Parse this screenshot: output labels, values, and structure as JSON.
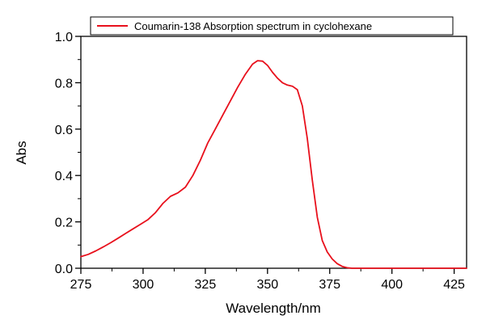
{
  "chart_data": {
    "type": "line",
    "legend": {
      "position": "top",
      "boxed": true
    },
    "xlabel": "Wavelength/nm",
    "ylabel": "Abs",
    "xlim": [
      275,
      430
    ],
    "ylim": [
      0.0,
      1.0
    ],
    "xticks": [
      275,
      300,
      325,
      350,
      375,
      400,
      425
    ],
    "xtick_labels": [
      "275",
      "300",
      "325",
      "350",
      "375",
      "400",
      "425"
    ],
    "yticks": [
      0.0,
      0.2,
      0.4,
      0.6,
      0.8,
      1.0
    ],
    "ytick_labels": [
      "0.0",
      "0.2",
      "0.4",
      "0.6",
      "0.8",
      "1.0"
    ],
    "grid": false,
    "series": [
      {
        "name": "Coumarin-138 Absorption spectrum in cyclohexane",
        "color": "#e8101c",
        "x": [
          275,
          278,
          281,
          284,
          287,
          290,
          293,
          296,
          299,
          302,
          305,
          308,
          311,
          314,
          317,
          320,
          323,
          326,
          329,
          332,
          335,
          338,
          341,
          344,
          346,
          348,
          350,
          352,
          354,
          356,
          358,
          360,
          362,
          364,
          366,
          368,
          370,
          372,
          374,
          376,
          378,
          380,
          382,
          384,
          386,
          390,
          400,
          410,
          420,
          430
        ],
        "y": [
          0.05,
          0.06,
          0.075,
          0.092,
          0.11,
          0.13,
          0.15,
          0.17,
          0.19,
          0.21,
          0.24,
          0.28,
          0.31,
          0.325,
          0.35,
          0.4,
          0.465,
          0.54,
          0.6,
          0.66,
          0.72,
          0.78,
          0.835,
          0.88,
          0.895,
          0.893,
          0.875,
          0.845,
          0.82,
          0.8,
          0.79,
          0.785,
          0.77,
          0.7,
          0.56,
          0.38,
          0.22,
          0.12,
          0.07,
          0.04,
          0.02,
          0.008,
          0.002,
          0.0,
          0.0,
          0.0,
          0.0,
          0.0,
          0.0,
          0.0
        ]
      }
    ]
  }
}
